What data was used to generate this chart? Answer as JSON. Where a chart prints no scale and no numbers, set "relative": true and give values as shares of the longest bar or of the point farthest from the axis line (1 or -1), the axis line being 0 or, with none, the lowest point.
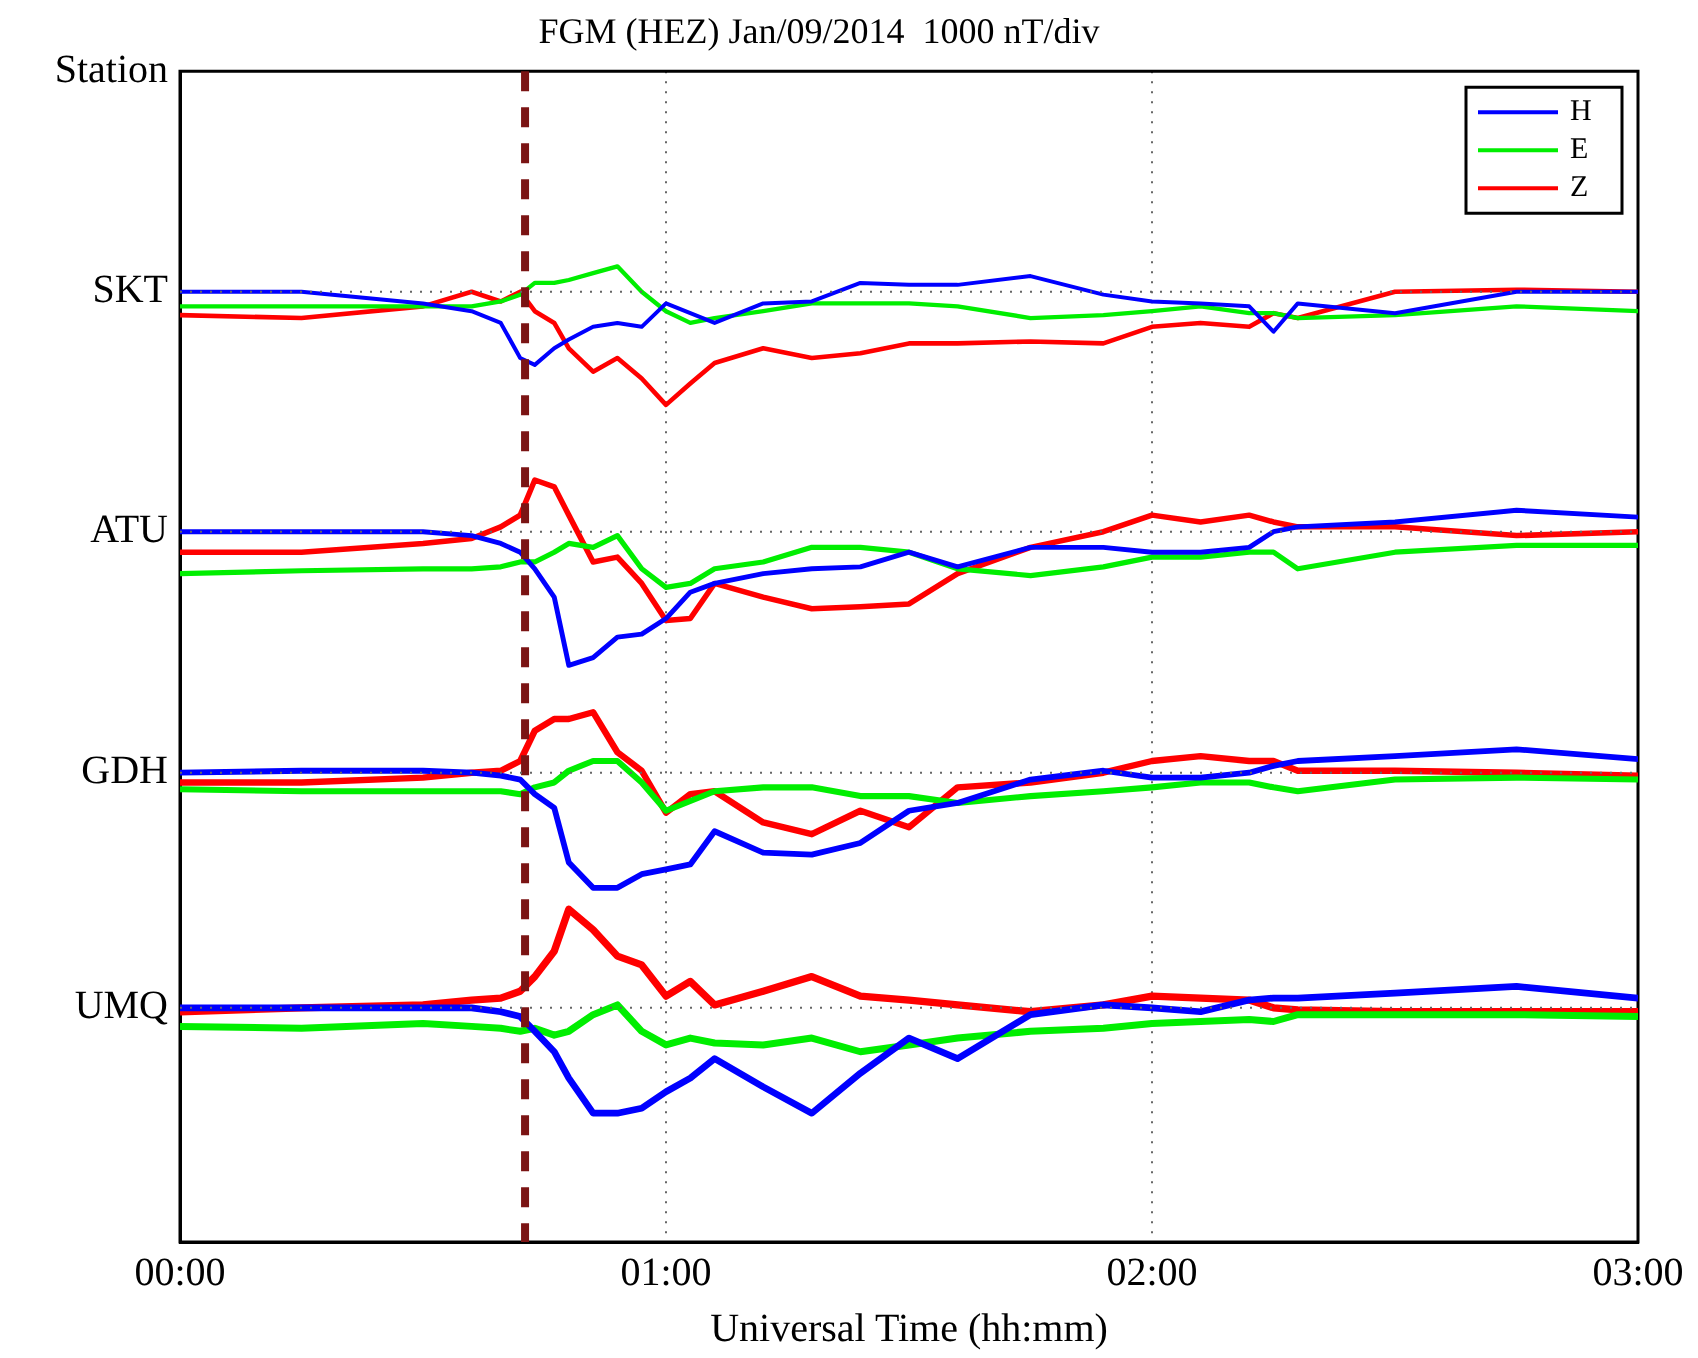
{
  "chart_data": {
    "type": "line",
    "title": "FGM (HEZ) Jan/09/2014  1000 nT/div",
    "xlabel": "Universal Time (hh:mm)",
    "relative": true,
    "x": [
      0,
      0.25,
      0.5,
      0.6,
      0.66,
      0.7,
      0.73,
      0.77,
      0.8,
      0.85,
      0.9,
      0.95,
      1.0,
      1.05,
      1.1,
      1.2,
      1.3,
      1.4,
      1.5,
      1.6,
      1.75,
      1.9,
      2.0,
      2.1,
      2.2,
      2.25,
      2.3,
      2.5,
      2.75,
      3.0
    ],
    "xlim": [
      0,
      3
    ],
    "xticks": [
      {
        "value": 0,
        "label": "00:00"
      },
      {
        "value": 1,
        "label": "01:00"
      },
      {
        "value": 2,
        "label": "02:00"
      },
      {
        "value": 3,
        "label": "03:00"
      }
    ],
    "annotations": [
      "Station",
      "SKT",
      "ATU",
      "GDH",
      "UMQ"
    ],
    "grid": true,
    "legend": "top right",
    "marker": "none",
    "line_style": "solid",
    "ref_lines": [
      {
        "axis": "x",
        "value": 0.71,
        "color": "#7b1414",
        "line_style": "dashed"
      }
    ],
    "series": [
      {
        "name": "H",
        "color": "#0000ff",
        "values": [
          0.974,
          0.974,
          0.962,
          0.954,
          0.942,
          0.906,
          0.899,
          0.916,
          0.925,
          0.938,
          0.942,
          0.938,
          0.962,
          0.952,
          0.942,
          0.962,
          0.964,
          0.983,
          0.981,
          0.981,
          0.99,
          0.971,
          0.964,
          0.962,
          0.959,
          0.933,
          0.962,
          0.952,
          0.974,
          0.974
        ]
      },
      {
        "name": "E",
        "color": "#00ee00",
        "values": [
          0.959,
          0.959,
          0.959,
          0.959,
          0.964,
          0.971,
          0.983,
          0.983,
          0.986,
          0.993,
          1,
          0.974,
          0.954,
          0.942,
          0.947,
          0.954,
          0.962,
          0.962,
          0.962,
          0.959,
          0.947,
          0.95,
          0.954,
          0.959,
          0.952,
          0.952,
          0.947,
          0.95,
          0.959,
          0.954
        ]
      },
      {
        "name": "Z",
        "color": "#ff0000",
        "values": [
          0.95,
          0.947,
          0.959,
          0.974,
          0.964,
          0.974,
          0.954,
          0.942,
          0.916,
          0.892,
          0.906,
          0.885,
          0.858,
          0.88,
          0.901,
          0.916,
          0.906,
          0.911,
          0.921,
          0.921,
          0.923,
          0.921,
          0.938,
          0.942,
          0.938,
          0.952,
          0.947,
          0.974,
          0.976,
          0.974
        ]
      },
      {
        "color": "#0000ff",
        "values": [
          0.728,
          0.728,
          0.728,
          0.724,
          0.716,
          0.707,
          0.69,
          0.661,
          0.591,
          0.599,
          0.62,
          0.623,
          0.639,
          0.666,
          0.675,
          0.685,
          0.69,
          0.692,
          0.707,
          0.692,
          0.712,
          0.712,
          0.707,
          0.707,
          0.712,
          0.728,
          0.733,
          0.738,
          0.75,
          0.743
        ]
      },
      {
        "color": "#00ee00",
        "values": [
          0.685,
          0.688,
          0.69,
          0.69,
          0.692,
          0.697,
          0.697,
          0.707,
          0.716,
          0.712,
          0.724,
          0.69,
          0.671,
          0.675,
          0.69,
          0.697,
          0.712,
          0.712,
          0.707,
          0.69,
          0.683,
          0.692,
          0.702,
          0.702,
          0.707,
          0.707,
          0.69,
          0.707,
          0.714,
          0.714
        ]
      },
      {
        "color": "#ff0000",
        "values": [
          0.707,
          0.707,
          0.716,
          0.721,
          0.733,
          0.745,
          0.781,
          0.774,
          0.745,
          0.697,
          0.702,
          0.675,
          0.637,
          0.639,
          0.675,
          0.661,
          0.649,
          0.651,
          0.654,
          0.685,
          0.712,
          0.728,
          0.745,
          0.738,
          0.745,
          0.738,
          0.733,
          0.733,
          0.724,
          0.728
        ]
      },
      {
        "color": "#0000ff",
        "values": [
          0.481,
          0.483,
          0.483,
          0.481,
          0.478,
          0.474,
          0.459,
          0.445,
          0.389,
          0.363,
          0.363,
          0.377,
          0.382,
          0.387,
          0.421,
          0.399,
          0.397,
          0.409,
          0.442,
          0.45,
          0.474,
          0.483,
          0.476,
          0.476,
          0.481,
          0.488,
          0.493,
          0.498,
          0.505,
          0.495
        ]
      },
      {
        "color": "#00ee00",
        "values": [
          0.464,
          0.462,
          0.462,
          0.462,
          0.462,
          0.459,
          0.466,
          0.471,
          0.483,
          0.493,
          0.493,
          0.471,
          0.442,
          0.452,
          0.462,
          0.466,
          0.466,
          0.457,
          0.457,
          0.45,
          0.457,
          0.462,
          0.466,
          0.471,
          0.471,
          0.466,
          0.462,
          0.474,
          0.476,
          0.474
        ]
      },
      {
        "color": "#ff0000",
        "values": [
          0.471,
          0.471,
          0.476,
          0.481,
          0.483,
          0.493,
          0.524,
          0.536,
          0.536,
          0.543,
          0.502,
          0.483,
          0.44,
          0.459,
          0.462,
          0.43,
          0.418,
          0.442,
          0.425,
          0.466,
          0.471,
          0.481,
          0.493,
          0.498,
          0.493,
          0.493,
          0.483,
          0.483,
          0.481,
          0.478
        ]
      },
      {
        "color": "#0000ff",
        "values": [
          0.24,
          0.24,
          0.24,
          0.24,
          0.236,
          0.231,
          0.216,
          0.195,
          0.168,
          0.132,
          0.132,
          0.137,
          0.154,
          0.168,
          0.188,
          0.159,
          0.132,
          0.173,
          0.209,
          0.188,
          0.233,
          0.243,
          0.24,
          0.236,
          0.248,
          0.25,
          0.25,
          0.255,
          0.262,
          0.25
        ]
      },
      {
        "color": "#00ee00",
        "values": [
          0.221,
          0.219,
          0.224,
          0.221,
          0.219,
          0.216,
          0.219,
          0.212,
          0.216,
          0.233,
          0.243,
          0.216,
          0.202,
          0.209,
          0.204,
          0.202,
          0.209,
          0.195,
          0.202,
          0.209,
          0.216,
          0.219,
          0.224,
          0.226,
          0.228,
          0.226,
          0.233,
          0.233,
          0.233,
          0.231
        ]
      },
      {
        "color": "#ff0000",
        "values": [
          0.236,
          0.24,
          0.243,
          0.248,
          0.25,
          0.257,
          0.272,
          0.298,
          0.341,
          0.32,
          0.293,
          0.284,
          0.252,
          0.267,
          0.243,
          0.257,
          0.272,
          0.252,
          0.248,
          0.243,
          0.236,
          0.243,
          0.252,
          0.25,
          0.248,
          0.24,
          0.238,
          0.236,
          0.236,
          0.236
        ]
      }
    ]
  }
}
